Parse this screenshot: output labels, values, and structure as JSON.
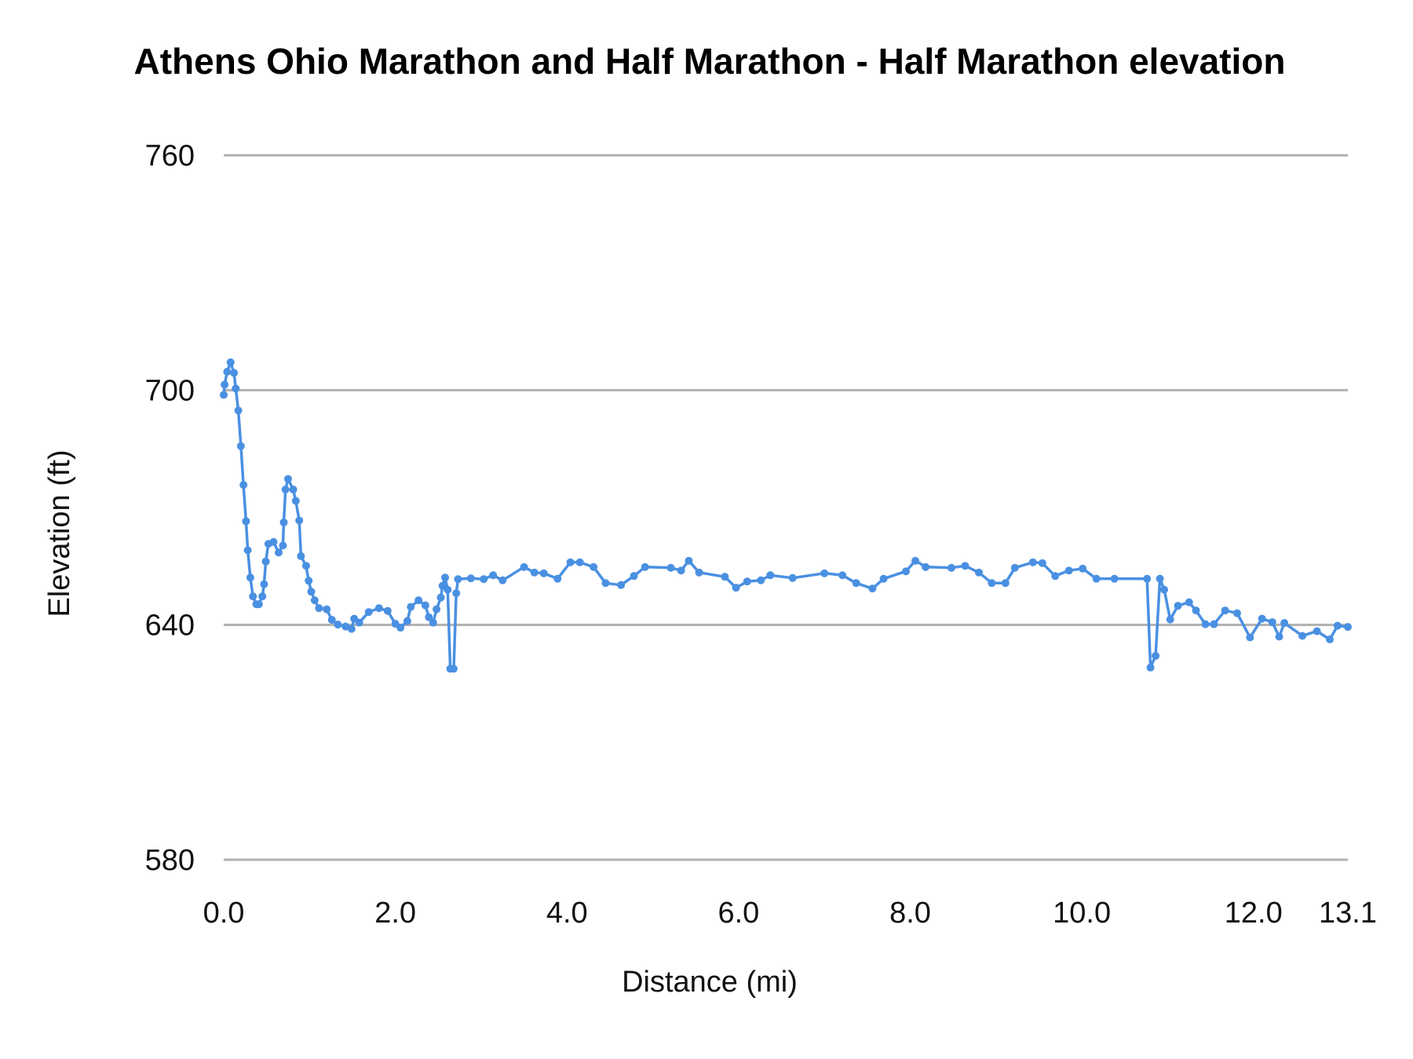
{
  "chart_data": {
    "type": "line",
    "title": "Athens Ohio Marathon and Half Marathon - Half Marathon elevation",
    "xlabel": "Distance (mi)",
    "ylabel": "Elevation (ft)",
    "xlim": [
      0,
      13.1
    ],
    "ylim": [
      580,
      760
    ],
    "x_ticks": [
      "0.0",
      "2.0",
      "4.0",
      "6.0",
      "8.0",
      "10.0",
      "12.0",
      "13.1"
    ],
    "x_tick_values": [
      0,
      2,
      4,
      6,
      8,
      10,
      12,
      13.1
    ],
    "y_ticks": [
      "760",
      "700",
      "640",
      "580"
    ],
    "y_tick_values": [
      760,
      700,
      640,
      580
    ],
    "grid": "horizontal",
    "legend": "none",
    "markers": true,
    "color": "#4a90e2",
    "series": [
      {
        "x": [
          0.0,
          0.01,
          0.04,
          0.08,
          0.12,
          0.14,
          0.17,
          0.2,
          0.23,
          0.26,
          0.28,
          0.31,
          0.34,
          0.38,
          0.41,
          0.45,
          0.47,
          0.49,
          0.52,
          0.58,
          0.64,
          0.69,
          0.7,
          0.72,
          0.75,
          0.81,
          0.84,
          0.88,
          0.9,
          0.96,
          0.99,
          1.02,
          1.06,
          1.11,
          1.2,
          1.26,
          1.33,
          1.42,
          1.49,
          1.52,
          1.58,
          1.69,
          1.81,
          1.91,
          2.0,
          2.06,
          2.14,
          2.18,
          2.27,
          2.35,
          2.39,
          2.44,
          2.48,
          2.53,
          2.55,
          2.58,
          2.61,
          2.64,
          2.68,
          2.71,
          2.73,
          2.88,
          3.03,
          3.14,
          3.25,
          3.5,
          3.62,
          3.73,
          3.89,
          4.04,
          4.15,
          4.31,
          4.45,
          4.63,
          4.78,
          4.91,
          5.21,
          5.33,
          5.42,
          5.54,
          5.84,
          5.97,
          6.1,
          6.26,
          6.37,
          6.63,
          7.0,
          7.21,
          7.37,
          7.56,
          7.69,
          7.95,
          8.06,
          8.18,
          8.48,
          8.64,
          8.8,
          8.95,
          9.11,
          9.22,
          9.43,
          9.54,
          9.69,
          9.85,
          10.01,
          10.17,
          10.38,
          10.76,
          10.8,
          10.86,
          10.91,
          10.96,
          11.03,
          11.12,
          11.25,
          11.33,
          11.44,
          11.54,
          11.67,
          11.81,
          11.96,
          12.1,
          12.22,
          12.3,
          12.36,
          12.57,
          12.74,
          12.89,
          12.98,
          13.1
        ],
        "y": [
          698.8,
          701.4,
          704.7,
          707.1,
          704.4,
          700.4,
          694.8,
          685.7,
          675.8,
          666.5,
          659.1,
          652.1,
          647.3,
          645.3,
          645.3,
          647.3,
          650.4,
          656.2,
          660.7,
          661.2,
          658.5,
          660.3,
          666.2,
          674.6,
          677.3,
          674.6,
          671.7,
          666.7,
          657.6,
          655.1,
          651.3,
          648.5,
          646.3,
          644.3,
          644.0,
          641.3,
          640.1,
          639.6,
          639.0,
          641.6,
          640.6,
          643.3,
          644.3,
          643.6,
          640.3,
          639.3,
          641.0,
          644.6,
          646.3,
          645.0,
          642.0,
          640.6,
          644.0,
          647.0,
          650.0,
          652.1,
          649.0,
          628.8,
          628.8,
          648.1,
          651.7,
          651.9,
          651.7,
          652.7,
          651.4,
          654.8,
          653.4,
          653.2,
          651.8,
          656.0,
          656.0,
          654.8,
          650.7,
          650.2,
          652.5,
          654.8,
          654.6,
          653.9,
          656.4,
          653.4,
          652.3,
          649.5,
          651.1,
          651.4,
          652.7,
          652.0,
          653.2,
          652.7,
          650.7,
          649.3,
          651.8,
          653.7,
          656.4,
          654.8,
          654.6,
          655.1,
          653.4,
          650.7,
          650.7,
          654.6,
          656.0,
          655.8,
          652.5,
          653.9,
          654.4,
          651.8,
          651.8,
          651.8,
          629.1,
          632.1,
          651.8,
          649.0,
          641.4,
          644.9,
          645.8,
          643.7,
          640.2,
          640.2,
          643.7,
          643.0,
          636.8,
          641.6,
          640.7,
          637.0,
          640.5,
          637.2,
          638.4,
          636.3,
          639.8,
          639.5
        ]
      }
    ]
  }
}
